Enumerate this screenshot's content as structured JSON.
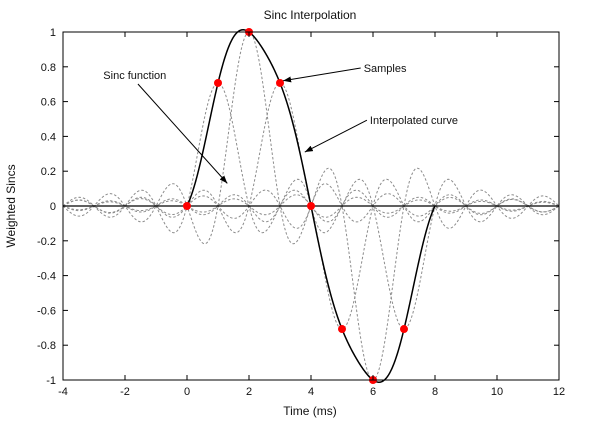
{
  "chart_data": {
    "type": "line",
    "title": "Sinc Interpolation",
    "xlabel": "Time (ms)",
    "ylabel": "Weighted Sincs",
    "xlim": [
      -4,
      12
    ],
    "ylim": [
      -1,
      1
    ],
    "xticks": [
      -4,
      -2,
      0,
      2,
      4,
      6,
      8,
      10,
      12
    ],
    "yticks": [
      -1,
      -0.8,
      -0.6,
      -0.4,
      -0.2,
      0,
      0.2,
      0.4,
      0.6,
      0.8,
      1
    ],
    "grid": false,
    "sample_period_ms": 1,
    "samples": {
      "x": [
        0,
        1,
        2,
        3,
        4,
        5,
        6,
        7
      ],
      "y": [
        0,
        0.707,
        1,
        0.707,
        0,
        -0.707,
        -1,
        -0.707
      ]
    },
    "interpolated_curve": {
      "x_range": [
        0,
        8
      ]
    },
    "sinc_range": [
      -4,
      12
    ],
    "annotations": [
      {
        "text": "Sinc function",
        "label_at": [
          -2.7,
          0.73
        ],
        "points_to": [
          1.3,
          0.13
        ]
      },
      {
        "text": "Samples",
        "label_at": [
          5.7,
          0.77
        ],
        "points_to": [
          3.1,
          0.72
        ]
      },
      {
        "text": "Interpolated curve",
        "label_at": [
          5.9,
          0.47
        ],
        "points_to": [
          3.8,
          0.31
        ]
      }
    ],
    "colors": {
      "curve": "#000000",
      "sincs": "#8c8c8c",
      "samples": "#ff0000",
      "zero_line": "#000000"
    }
  }
}
